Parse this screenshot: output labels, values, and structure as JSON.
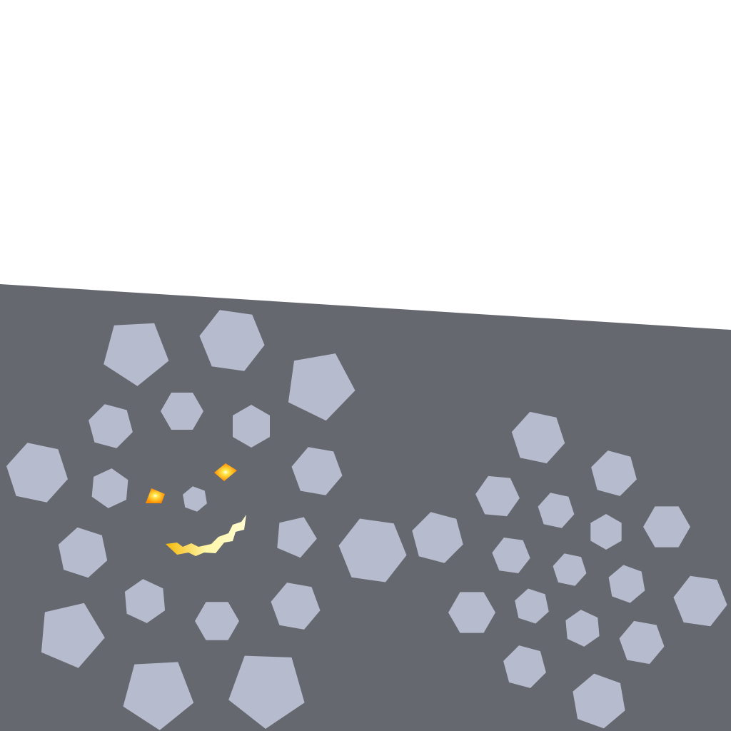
{
  "scene": {
    "sky_color": "#ffffff",
    "ground_color": "#666870",
    "pebble_color": "#b6bccd",
    "eye_outer_color": "#ff8c00",
    "eye_inner_color": "#ffe94a",
    "mouth_color": "#fff27a",
    "mouth_edge_color": "#f5b80a"
  },
  "icons": {
    "face": "creature-face-icon",
    "eye": "glowing-eye-icon",
    "mouth": "jagged-grin-icon",
    "pebble": "pentagon-pebble-icon"
  }
}
